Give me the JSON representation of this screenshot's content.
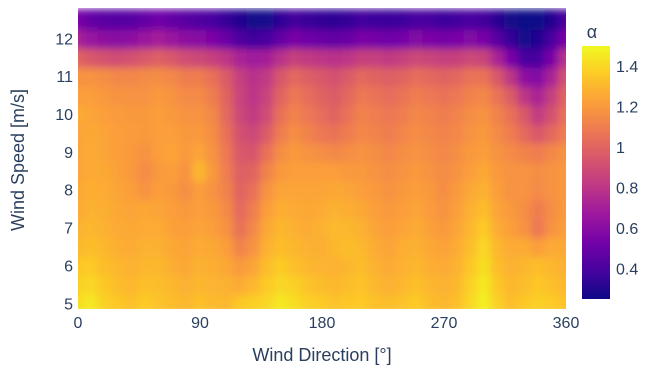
{
  "chart_data": {
    "type": "heatmap",
    "title": "",
    "xlabel": "Wind Direction [°]",
    "ylabel": "Wind Speed [m/s]",
    "x": [
      0,
      10,
      20,
      30,
      40,
      50,
      60,
      70,
      80,
      90,
      100,
      110,
      120,
      130,
      140,
      150,
      160,
      170,
      180,
      190,
      200,
      210,
      220,
      230,
      240,
      250,
      260,
      270,
      280,
      290,
      300,
      310,
      320,
      330,
      340,
      350,
      360
    ],
    "y": [
      5,
      5.5,
      6,
      6.5,
      7,
      7.5,
      8,
      8.5,
      9,
      9.5,
      10,
      10.5,
      11,
      11.5,
      12,
      12.5
    ],
    "z": [
      [
        1.42,
        1.45,
        1.38,
        1.35,
        1.33,
        1.36,
        1.34,
        1.32,
        1.3,
        1.33,
        1.31,
        1.3,
        1.35,
        1.38,
        1.4,
        1.45,
        1.42,
        1.38,
        1.36,
        1.34,
        1.35,
        1.36,
        1.33,
        1.32,
        1.34,
        1.36,
        1.32,
        1.3,
        1.33,
        1.4,
        1.47,
        1.38,
        1.32,
        1.35,
        1.38,
        1.36,
        1.34
      ],
      [
        1.38,
        1.4,
        1.35,
        1.32,
        1.3,
        1.33,
        1.32,
        1.3,
        1.28,
        1.3,
        1.29,
        1.28,
        1.26,
        1.3,
        1.36,
        1.4,
        1.38,
        1.34,
        1.32,
        1.3,
        1.32,
        1.34,
        1.3,
        1.28,
        1.3,
        1.33,
        1.3,
        1.28,
        1.3,
        1.38,
        1.45,
        1.35,
        1.3,
        1.32,
        1.35,
        1.33,
        1.3
      ],
      [
        1.35,
        1.36,
        1.32,
        1.3,
        1.28,
        1.3,
        1.3,
        1.27,
        1.25,
        1.28,
        1.27,
        1.25,
        1.2,
        1.24,
        1.32,
        1.36,
        1.33,
        1.3,
        1.29,
        1.28,
        1.3,
        1.32,
        1.28,
        1.26,
        1.28,
        1.3,
        1.27,
        1.26,
        1.28,
        1.35,
        1.42,
        1.32,
        1.28,
        1.3,
        1.32,
        1.3,
        1.28
      ],
      [
        1.3,
        1.32,
        1.3,
        1.27,
        1.26,
        1.28,
        1.28,
        1.25,
        1.24,
        1.26,
        1.25,
        1.22,
        1.12,
        1.18,
        1.28,
        1.32,
        1.3,
        1.28,
        1.27,
        1.3,
        1.32,
        1.3,
        1.26,
        1.24,
        1.27,
        1.28,
        1.25,
        1.23,
        1.26,
        1.32,
        1.4,
        1.3,
        1.26,
        1.26,
        1.22,
        1.26,
        1.25
      ],
      [
        1.28,
        1.3,
        1.28,
        1.26,
        1.25,
        1.26,
        1.26,
        1.23,
        1.22,
        1.24,
        1.22,
        1.18,
        1.05,
        1.14,
        1.25,
        1.3,
        1.28,
        1.26,
        1.28,
        1.31,
        1.3,
        1.28,
        1.24,
        1.22,
        1.24,
        1.26,
        1.23,
        1.2,
        1.24,
        1.3,
        1.36,
        1.26,
        1.22,
        1.18,
        1.08,
        1.18,
        1.22
      ],
      [
        1.26,
        1.28,
        1.27,
        1.25,
        1.24,
        1.25,
        1.24,
        1.22,
        1.2,
        1.22,
        1.2,
        1.15,
        1.02,
        1.1,
        1.22,
        1.27,
        1.26,
        1.25,
        1.26,
        1.28,
        1.27,
        1.25,
        1.22,
        1.2,
        1.22,
        1.24,
        1.21,
        1.18,
        1.22,
        1.28,
        1.32,
        1.24,
        1.2,
        1.16,
        1.1,
        1.16,
        1.2
      ],
      [
        1.25,
        1.27,
        1.26,
        1.24,
        1.22,
        1.18,
        1.22,
        1.2,
        1.16,
        1.22,
        1.18,
        1.12,
        1.0,
        1.05,
        1.18,
        1.24,
        1.24,
        1.24,
        1.24,
        1.25,
        1.24,
        1.22,
        1.2,
        1.18,
        1.2,
        1.22,
        1.2,
        1.16,
        1.2,
        1.25,
        1.28,
        1.22,
        1.18,
        1.18,
        1.15,
        1.18,
        1.2
      ],
      [
        1.24,
        1.26,
        1.25,
        1.23,
        1.2,
        1.15,
        1.2,
        1.22,
        1.18,
        1.3,
        1.2,
        1.1,
        0.98,
        1.0,
        1.12,
        1.2,
        1.22,
        1.22,
        1.22,
        1.22,
        1.2,
        1.2,
        1.18,
        1.16,
        1.18,
        1.2,
        1.18,
        1.15,
        1.18,
        1.22,
        1.25,
        1.2,
        1.18,
        1.18,
        1.16,
        1.18,
        1.2
      ],
      [
        1.24,
        1.26,
        1.24,
        1.22,
        1.2,
        1.18,
        1.22,
        1.24,
        1.2,
        1.24,
        1.18,
        1.08,
        0.95,
        0.94,
        1.05,
        1.16,
        1.2,
        1.18,
        1.16,
        1.14,
        1.16,
        1.18,
        1.16,
        1.14,
        1.16,
        1.18,
        1.16,
        1.14,
        1.16,
        1.2,
        1.22,
        1.18,
        1.15,
        1.12,
        1.1,
        1.14,
        1.18
      ],
      [
        1.24,
        1.25,
        1.24,
        1.22,
        1.21,
        1.2,
        1.22,
        1.22,
        1.2,
        1.2,
        1.16,
        1.05,
        0.92,
        0.88,
        0.96,
        1.1,
        1.16,
        1.12,
        1.08,
        1.06,
        1.1,
        1.14,
        1.12,
        1.1,
        1.13,
        1.16,
        1.14,
        1.12,
        1.14,
        1.18,
        1.2,
        1.15,
        1.1,
        1.02,
        0.95,
        1.02,
        1.1
      ],
      [
        1.26,
        1.24,
        1.22,
        1.21,
        1.2,
        1.2,
        1.22,
        1.2,
        1.18,
        1.18,
        1.14,
        1.02,
        0.88,
        0.82,
        0.9,
        1.05,
        1.12,
        1.08,
        1.04,
        1.0,
        1.06,
        1.12,
        1.1,
        1.08,
        1.1,
        1.14,
        1.12,
        1.1,
        1.12,
        1.16,
        1.18,
        1.12,
        1.05,
        0.95,
        0.82,
        0.92,
        1.05
      ],
      [
        1.22,
        1.22,
        1.2,
        1.18,
        1.18,
        1.18,
        1.2,
        1.18,
        1.15,
        1.15,
        1.1,
        1.0,
        0.86,
        0.8,
        0.86,
        1.0,
        1.08,
        1.04,
        1.0,
        0.96,
        1.02,
        1.08,
        1.06,
        1.04,
        1.06,
        1.1,
        1.08,
        1.06,
        1.08,
        1.12,
        1.14,
        1.06,
        0.96,
        0.8,
        0.72,
        0.84,
        1.0
      ],
      [
        1.18,
        1.18,
        1.16,
        1.14,
        1.14,
        1.15,
        1.16,
        1.14,
        1.1,
        1.1,
        1.05,
        0.96,
        0.84,
        0.78,
        0.82,
        0.94,
        1.02,
        0.98,
        0.95,
        0.92,
        0.96,
        1.02,
        1.0,
        0.98,
        1.0,
        1.04,
        1.02,
        1.0,
        1.02,
        1.06,
        1.06,
        0.95,
        0.8,
        0.62,
        0.58,
        0.72,
        0.92
      ],
      [
        1.0,
        0.95,
        0.92,
        0.9,
        0.92,
        0.95,
        0.98,
        0.95,
        0.9,
        0.88,
        0.85,
        0.8,
        0.72,
        0.68,
        0.7,
        0.78,
        0.85,
        0.82,
        0.8,
        0.78,
        0.8,
        0.85,
        0.84,
        0.82,
        0.84,
        0.88,
        0.86,
        0.84,
        0.85,
        0.88,
        0.86,
        0.72,
        0.55,
        0.4,
        0.4,
        0.55,
        0.78
      ],
      [
        0.72,
        0.65,
        0.62,
        0.6,
        0.62,
        0.66,
        0.7,
        0.66,
        0.62,
        0.6,
        0.56,
        0.5,
        0.42,
        0.38,
        0.4,
        0.48,
        0.55,
        0.52,
        0.5,
        0.48,
        0.5,
        0.55,
        0.54,
        0.52,
        0.54,
        0.58,
        0.56,
        0.54,
        0.55,
        0.58,
        0.55,
        0.45,
        0.35,
        0.28,
        0.3,
        0.4,
        0.55
      ],
      [
        0.55,
        0.48,
        0.45,
        0.44,
        0.45,
        0.48,
        0.52,
        0.48,
        0.45,
        0.42,
        0.4,
        0.35,
        0.3,
        0.27,
        0.28,
        0.33,
        0.38,
        0.36,
        0.34,
        0.33,
        0.35,
        0.38,
        0.37,
        0.36,
        0.37,
        0.4,
        0.39,
        0.37,
        0.38,
        0.4,
        0.38,
        0.32,
        0.27,
        0.25,
        0.26,
        0.3,
        0.4
      ]
    ],
    "xlim": [
      0,
      360
    ],
    "ylim": [
      4.85,
      12.8
    ],
    "x_ticks": [
      0,
      90,
      180,
      270,
      360
    ],
    "y_ticks": [
      5,
      6,
      7,
      8,
      9,
      10,
      11,
      12
    ],
    "x_tick_labels": [
      "0",
      "90",
      "180",
      "270",
      "360"
    ],
    "y_tick_labels": [
      "5",
      "6",
      "7",
      "8",
      "9",
      "10",
      "11",
      "12"
    ],
    "colorscale": "plasma",
    "colorbar": {
      "title": "α",
      "range": [
        0.25,
        1.5
      ],
      "ticks": [
        0.4,
        0.6,
        0.8,
        1.0,
        1.2,
        1.4
      ],
      "tick_labels": [
        "0.4",
        "0.6",
        "0.8",
        "1",
        "1.2",
        "1.4"
      ]
    },
    "grid": false,
    "legend": "colorbar-right"
  }
}
